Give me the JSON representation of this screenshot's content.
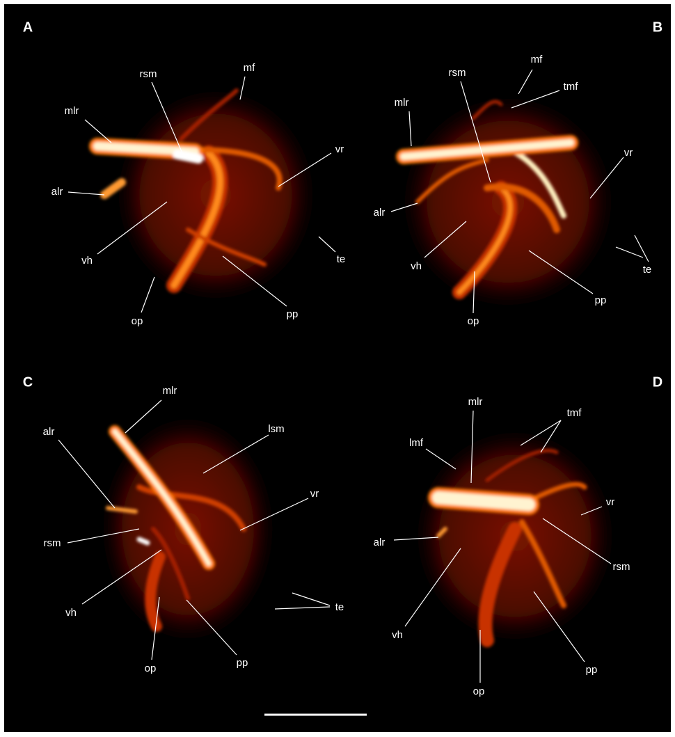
{
  "panels": [
    {
      "letter": "A",
      "labels": [
        "mf",
        "rsm",
        "mlr",
        "vr",
        "alr",
        "vh",
        "te",
        "op",
        "pp"
      ]
    },
    {
      "letter": "B",
      "labels": [
        "rsm",
        "mf",
        "tmf",
        "mlr",
        "vr",
        "alr",
        "vh",
        "te",
        "op",
        "pp"
      ]
    },
    {
      "letter": "C",
      "labels": [
        "mlr",
        "lsm",
        "alr",
        "vr",
        "rsm",
        "vh",
        "te",
        "op",
        "pp"
      ]
    },
    {
      "letter": "D",
      "labels": [
        "mlr",
        "tmf",
        "lmf",
        "vr",
        "alr",
        "rsm",
        "vh",
        "op",
        "pp"
      ]
    }
  ]
}
